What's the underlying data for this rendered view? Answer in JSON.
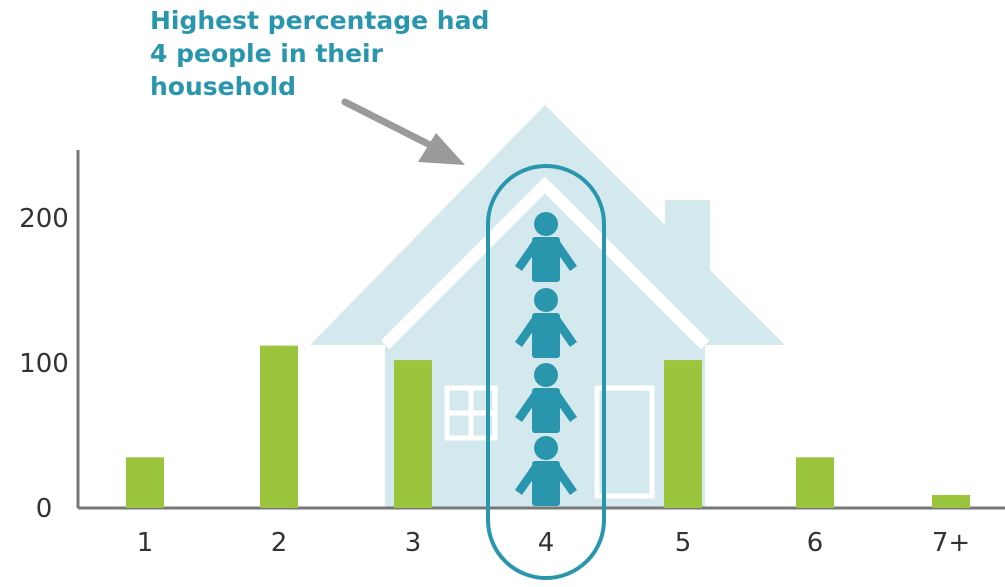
{
  "annotation": "Highest percentage had 4 people in their household",
  "colors": {
    "bar": "#9bc53d",
    "house": "#d3e9ee",
    "accent": "#2a96ae",
    "arrow": "#9a9a9a",
    "axis": "#777777",
    "text": "#333333"
  },
  "chart_data": {
    "type": "bar",
    "categories": [
      "1",
      "2",
      "3",
      "4",
      "5",
      "6",
      "7+"
    ],
    "values": [
      35,
      112,
      102,
      0,
      102,
      35,
      9
    ],
    "ylim": [
      0,
      230
    ],
    "yticks": [
      0,
      100,
      200
    ],
    "highlight_category": "4",
    "highlight_people": 4,
    "grid": false,
    "legend": "none"
  }
}
